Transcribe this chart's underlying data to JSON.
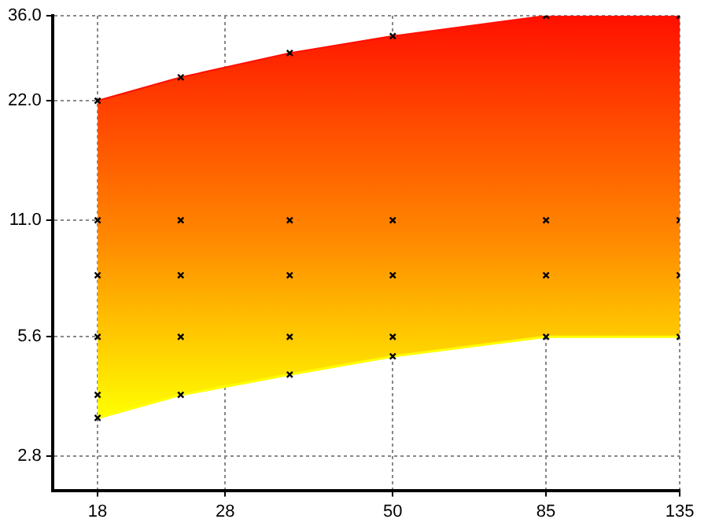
{
  "chart_data": {
    "type": "area",
    "log": "xy",
    "grid": true,
    "legend": false,
    "xlim": [
      15.4,
      135
    ],
    "xticks": [
      18,
      28,
      50,
      85,
      135
    ],
    "ylim": [
      2.3,
      36
    ],
    "yticks": [
      {
        "value": 2.8,
        "label": "2.8"
      },
      {
        "value": 5.6,
        "label": "5.6"
      },
      {
        "value": 11,
        "label": "11.0"
      },
      {
        "value": 22,
        "label": "22.0"
      },
      {
        "value": 36,
        "label": "36.0"
      }
    ],
    "series": [
      {
        "type": "line",
        "color": "#ffff00",
        "x": [
          18,
          24,
          35,
          50,
          85,
          135
        ],
        "values": [
          3.5,
          4.0,
          4.5,
          5.0,
          5.6,
          5.6
        ]
      },
      {
        "color": "#ff1000",
        "x": [
          18,
          24,
          35,
          50,
          85,
          135
        ],
        "values": [
          22,
          25.2,
          29,
          32,
          36,
          36
        ]
      },
      {
        "type": "scatter",
        "color": "#000000",
        "marker": "cross",
        "x": [
          18,
          18,
          18,
          18,
          18,
          18,
          24,
          24,
          24,
          24,
          24,
          35,
          35,
          35,
          35,
          35,
          50,
          50,
          50,
          50,
          50,
          85,
          85,
          85,
          85,
          135,
          135,
          135,
          135
        ],
        "values": [
          22,
          11,
          8,
          5.6,
          4.0,
          3.5,
          25.2,
          11,
          8,
          5.6,
          4.0,
          29,
          11,
          8,
          5.6,
          4.5,
          32,
          11,
          8,
          5.6,
          5.0,
          36,
          11,
          8,
          5.6,
          36,
          11,
          8,
          5.6
        ]
      }
    ]
  }
}
